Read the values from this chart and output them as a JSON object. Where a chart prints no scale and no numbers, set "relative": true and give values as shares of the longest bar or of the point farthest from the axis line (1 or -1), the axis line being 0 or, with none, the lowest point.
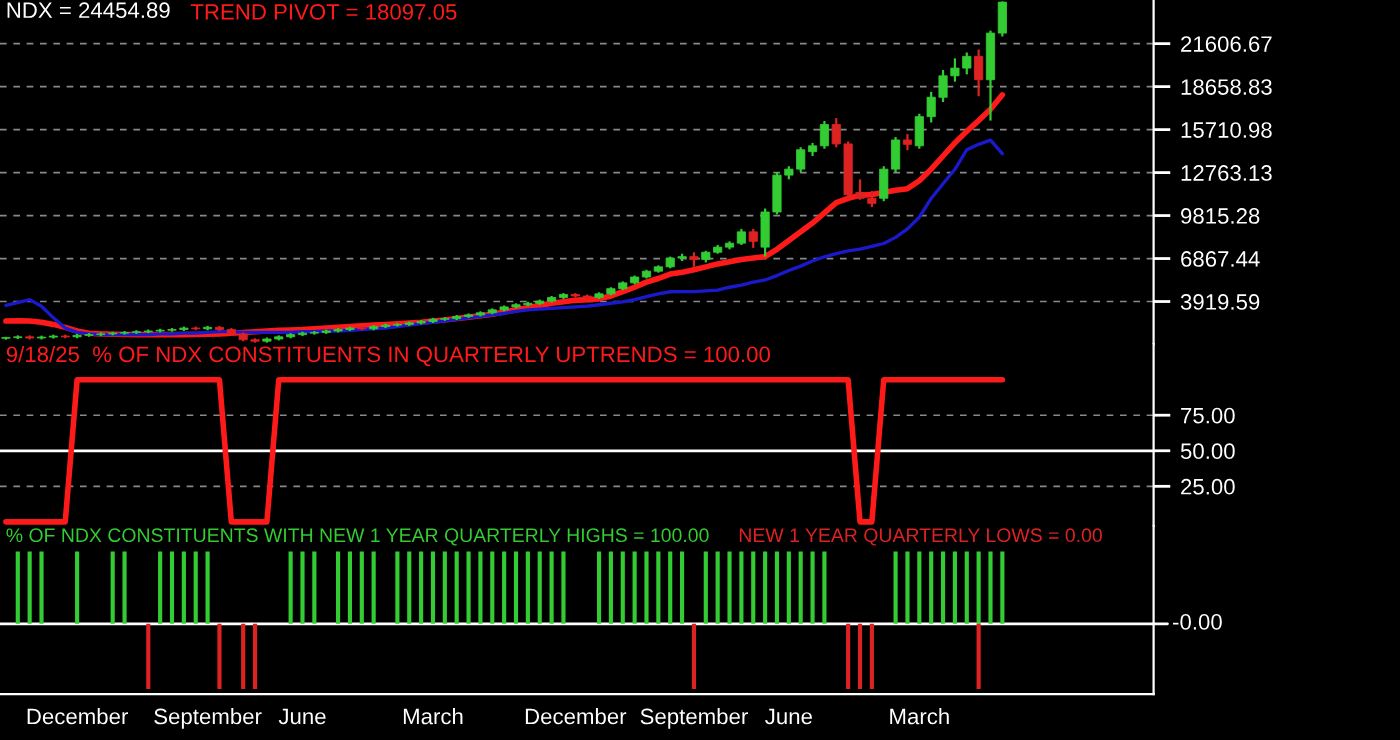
{
  "chart_data": [
    {
      "type": "candlestick",
      "title": "NDX = 24454.89",
      "categories": [
        null,
        null,
        null,
        null,
        null,
        null,
        null,
        null,
        null,
        null,
        null,
        null,
        null,
        null,
        null,
        null,
        null,
        null,
        null,
        null,
        null,
        null,
        null,
        null,
        null,
        null,
        null,
        null,
        null,
        null,
        null,
        null,
        null,
        null,
        null,
        null,
        null,
        null,
        null,
        null,
        null,
        null,
        null,
        null,
        null,
        null,
        null,
        null,
        null,
        null,
        null,
        null,
        null,
        null,
        null,
        null,
        null,
        null,
        null,
        null,
        null,
        null,
        null,
        null,
        null,
        null,
        null,
        null,
        null,
        null,
        null,
        null,
        null,
        null,
        null,
        null,
        null,
        null,
        null,
        null,
        null,
        null,
        null,
        null,
        null
      ],
      "ohlc": [
        [
          1400,
          1500,
          1300,
          1450
        ],
        [
          1450,
          1600,
          1350,
          1500
        ],
        [
          1500,
          1600,
          1320,
          1420
        ],
        [
          1420,
          1580,
          1320,
          1480
        ],
        [
          1480,
          1650,
          1380,
          1550
        ],
        [
          1550,
          1650,
          1400,
          1500
        ],
        [
          1500,
          1700,
          1400,
          1600
        ],
        [
          1600,
          1750,
          1500,
          1650
        ],
        [
          1650,
          1800,
          1550,
          1700
        ],
        [
          1700,
          1850,
          1600,
          1750
        ],
        [
          1750,
          1900,
          1650,
          1800
        ],
        [
          1800,
          1950,
          1700,
          1850
        ],
        [
          1850,
          2000,
          1750,
          1900
        ],
        [
          1900,
          2050,
          1800,
          1950
        ],
        [
          1950,
          2100,
          1850,
          2000
        ],
        [
          2000,
          2200,
          1900,
          2100
        ],
        [
          2100,
          2200,
          1950,
          2050
        ],
        [
          2050,
          2250,
          1950,
          2150
        ],
        [
          2150,
          2250,
          1900,
          2000
        ],
        [
          2000,
          2100,
          1600,
          1700
        ],
        [
          1700,
          1800,
          1200,
          1300
        ],
        [
          1300,
          1400,
          1100,
          1200
        ],
        [
          1200,
          1450,
          1100,
          1350
        ],
        [
          1350,
          1600,
          1250,
          1500
        ],
        [
          1500,
          1750,
          1400,
          1650
        ],
        [
          1650,
          1850,
          1550,
          1750
        ],
        [
          1750,
          1900,
          1650,
          1800
        ],
        [
          1800,
          2000,
          1700,
          1900
        ],
        [
          1900,
          2100,
          1800,
          2000
        ],
        [
          2000,
          2200,
          1900,
          2100
        ],
        [
          2100,
          2200,
          1950,
          2050
        ],
        [
          2050,
          2300,
          1950,
          2200
        ],
        [
          2200,
          2400,
          2100,
          2300
        ],
        [
          2300,
          2450,
          2200,
          2350
        ],
        [
          2350,
          2550,
          2250,
          2450
        ],
        [
          2450,
          2650,
          2350,
          2550
        ],
        [
          2550,
          2800,
          2450,
          2700
        ],
        [
          2700,
          2850,
          2600,
          2750
        ],
        [
          2750,
          3000,
          2650,
          2900
        ],
        [
          2900,
          3100,
          2800,
          3000
        ],
        [
          3000,
          3250,
          2900,
          3150
        ],
        [
          3150,
          3450,
          3050,
          3350
        ],
        [
          3350,
          3650,
          3250,
          3550
        ],
        [
          3550,
          3800,
          3450,
          3700
        ],
        [
          3700,
          3900,
          3600,
          3800
        ],
        [
          3800,
          4050,
          3700,
          3950
        ],
        [
          3950,
          4300,
          3850,
          4200
        ],
        [
          4200,
          4500,
          4100,
          4400
        ],
        [
          4400,
          4500,
          4200,
          4300
        ],
        [
          4300,
          4400,
          4100,
          4200
        ],
        [
          4200,
          4550,
          4100,
          4450
        ],
        [
          4450,
          4900,
          4350,
          4800
        ],
        [
          4800,
          5300,
          4700,
          5200
        ],
        [
          5200,
          5700,
          5100,
          5600
        ],
        [
          5600,
          6100,
          5500,
          6000
        ],
        [
          6000,
          6400,
          5900,
          6300
        ],
        [
          6300,
          7000,
          6200,
          6900
        ],
        [
          6900,
          7200,
          6700,
          7000
        ],
        [
          7000,
          7300,
          6300,
          6800
        ],
        [
          6800,
          7400,
          6600,
          7300
        ],
        [
          7300,
          7800,
          7200,
          7650
        ],
        [
          7650,
          8050,
          7500,
          7920
        ],
        [
          7920,
          8900,
          7800,
          8700
        ],
        [
          8700,
          8900,
          7600,
          8050
        ],
        [
          7650,
          10300,
          7000,
          10060
        ],
        [
          10060,
          12800,
          9900,
          12590
        ],
        [
          12590,
          13200,
          12300,
          13000
        ],
        [
          13000,
          14500,
          12800,
          14330
        ],
        [
          14200,
          14800,
          13900,
          14600
        ],
        [
          14600,
          16300,
          14400,
          16060
        ],
        [
          16060,
          16500,
          14500,
          14730
        ],
        [
          14730,
          14900,
          11000,
          11260
        ],
        [
          11400,
          12300,
          10900,
          11000
        ],
        [
          11000,
          11500,
          10400,
          10650
        ],
        [
          11000,
          13200,
          10800,
          13000
        ],
        [
          13000,
          15200,
          12800,
          15000
        ],
        [
          15000,
          15400,
          14300,
          14700
        ],
        [
          14600,
          16800,
          14400,
          16600
        ],
        [
          16600,
          18300,
          16200,
          17930
        ],
        [
          17930,
          19800,
          17600,
          19400
        ],
        [
          19400,
          20600,
          19000,
          19930
        ],
        [
          19930,
          21000,
          19500,
          20730
        ],
        [
          20730,
          21200,
          18000,
          19130
        ],
        [
          19130,
          22500,
          16330,
          22330
        ],
        [
          22330,
          24500,
          22100,
          24454.89
        ]
      ],
      "colors": [
        "#33cc33",
        "#33cc33",
        "#dd2222",
        "#33cc33",
        "#33cc33",
        "#dd2222",
        "#33cc33",
        "#33cc33",
        "#33cc33",
        "#33cc33",
        "#33cc33",
        "#33cc33",
        "#33cc33",
        "#33cc33",
        "#33cc33",
        "#33cc33",
        "#dd2222",
        "#33cc33",
        "#dd2222",
        "#dd2222",
        "#dd2222",
        "#dd2222",
        "#33cc33",
        "#33cc33",
        "#33cc33",
        "#33cc33",
        "#33cc33",
        "#33cc33",
        "#33cc33",
        "#33cc33",
        "#dd2222",
        "#33cc33",
        "#33cc33",
        "#33cc33",
        "#33cc33",
        "#33cc33",
        "#33cc33",
        "#33cc33",
        "#33cc33",
        "#33cc33",
        "#33cc33",
        "#33cc33",
        "#33cc33",
        "#33cc33",
        "#33cc33",
        "#33cc33",
        "#33cc33",
        "#33cc33",
        "#dd2222",
        "#dd2222",
        "#33cc33",
        "#33cc33",
        "#33cc33",
        "#33cc33",
        "#33cc33",
        "#33cc33",
        "#33cc33",
        "#33cc33",
        "#dd2222",
        "#33cc33",
        "#33cc33",
        "#33cc33",
        "#33cc33",
        "#dd2222",
        "#33cc33",
        "#33cc33",
        "#33cc33",
        "#33cc33",
        "#33cc33",
        "#33cc33",
        "#dd2222",
        "#dd2222",
        "#dd2222",
        "#dd2222",
        "#33cc33",
        "#33cc33",
        "#dd2222",
        "#33cc33",
        "#33cc33",
        "#33cc33",
        "#33cc33",
        "#33cc33",
        "#dd2222",
        "#33cc33",
        "#33cc33"
      ],
      "series": [
        {
          "type": "line",
          "name": "TREND PIVOT = 18097.05",
          "color": "#ff1a1a",
          "values": [
            2580,
            2600,
            2580,
            2500,
            2350,
            2150,
            1900,
            1750,
            1700,
            1680,
            1660,
            1650,
            1650,
            1650,
            1650,
            1650,
            1660,
            1680,
            1700,
            1750,
            1800,
            1850,
            1900,
            1950,
            1970,
            2000,
            2050,
            2100,
            2150,
            2200,
            2250,
            2300,
            2350,
            2400,
            2450,
            2500,
            2580,
            2650,
            2750,
            2850,
            2950,
            3050,
            3200,
            3350,
            3500,
            3650,
            3800,
            3900,
            4000,
            4050,
            4100,
            4300,
            4600,
            4900,
            5250,
            5500,
            5800,
            5920,
            6100,
            6300,
            6500,
            6650,
            6800,
            6900,
            7000,
            7500,
            8100,
            8700,
            9300,
            10000,
            10700,
            11000,
            11200,
            11260,
            11400,
            11550,
            11660,
            12200,
            13000,
            13900,
            14800,
            15600,
            16330,
            17100,
            18097.05
          ]
        },
        {
          "type": "line",
          "color": "#1a1acc",
          "values": [
            3650,
            3850,
            4050,
            3600,
            2800,
            2100,
            1800,
            1700,
            1650,
            1650,
            1650,
            1650,
            1650,
            1700,
            1700,
            1750,
            1750,
            1800,
            1850,
            1850,
            1800,
            1800,
            1800,
            1800,
            1800,
            1850,
            1850,
            1900,
            1900,
            1950,
            2000,
            2050,
            2100,
            2200,
            2300,
            2400,
            2500,
            2600,
            2700,
            2800,
            2900,
            3000,
            3100,
            3250,
            3350,
            3400,
            3450,
            3500,
            3550,
            3600,
            3700,
            3800,
            3900,
            4050,
            4250,
            4450,
            4590,
            4600,
            4600,
            4650,
            4700,
            4900,
            5050,
            5250,
            5400,
            5700,
            6050,
            6350,
            6700,
            6990,
            7200,
            7400,
            7520,
            7700,
            7900,
            8320,
            8900,
            9700,
            10990,
            12000,
            12990,
            14330,
            14700,
            14990,
            14060
          ]
        }
      ],
      "ylim": [
        1000,
        24600
      ],
      "yticks": [
        3919.59,
        6867.44,
        9815.28,
        12763.13,
        15710.98,
        18658.83,
        21606.67
      ],
      "grid": "y",
      "tick_labels": "y"
    },
    {
      "type": "line",
      "categories": [
        null,
        null,
        null,
        null,
        null,
        null,
        null,
        null,
        null,
        null,
        null,
        null,
        null,
        null,
        null,
        null,
        null,
        null,
        null,
        null,
        null,
        null,
        null,
        null,
        null,
        null,
        null,
        null,
        null,
        null,
        null,
        null,
        null,
        null,
        null,
        null,
        null,
        null,
        null,
        null,
        null,
        null,
        null,
        null,
        null,
        null,
        null,
        null,
        null,
        null,
        null,
        null,
        null,
        null,
        null,
        null,
        null,
        null,
        null,
        null,
        null,
        null,
        null,
        null,
        null,
        null,
        null,
        null,
        null,
        null,
        null,
        null,
        null,
        null,
        null,
        null,
        null,
        null,
        null,
        null,
        null,
        null,
        null,
        null,
        null
      ],
      "series": [
        {
          "name": "9/18/25  % OF NDX CONSTITUENTS IN QUARTERLY UPTRENDS = 100.00",
          "color": "#ff1a1a",
          "values": [
            0,
            0,
            0,
            0,
            0,
            0,
            100,
            100,
            100,
            100,
            100,
            100,
            100,
            100,
            100,
            100,
            100,
            100,
            100,
            0,
            0,
            0,
            0,
            100,
            100,
            100,
            100,
            100,
            100,
            100,
            100,
            100,
            100,
            100,
            100,
            100,
            100,
            100,
            100,
            100,
            100,
            100,
            100,
            100,
            100,
            100,
            100,
            100,
            100,
            100,
            100,
            100,
            100,
            100,
            100,
            100,
            100,
            100,
            100,
            100,
            100,
            100,
            100,
            100,
            100,
            100,
            100,
            100,
            100,
            100,
            100,
            100,
            0,
            0,
            100,
            100,
            100,
            100,
            100,
            100,
            100,
            100,
            100,
            100,
            100
          ]
        }
      ],
      "ylim": [
        -3,
        125
      ],
      "yticks": [
        {
          "value": 25,
          "label": "25.00"
        },
        {
          "value": 50,
          "label": "50.00"
        },
        {
          "value": 75,
          "label": "75.00"
        }
      ],
      "grid": "y",
      "ref_lines": [
        {
          "axis": "y",
          "value": 50,
          "color": "#ffffff"
        }
      ],
      "tick_labels": "y"
    },
    {
      "type": "bar",
      "relative": true,
      "categories": [
        null,
        null,
        null,
        null,
        null,
        null,
        "December",
        null,
        null,
        null,
        null,
        null,
        null,
        null,
        null,
        null,
        null,
        "September",
        null,
        null,
        null,
        null,
        null,
        null,
        null,
        "June",
        null,
        null,
        null,
        null,
        null,
        null,
        null,
        null,
        null,
        null,
        "March",
        null,
        null,
        null,
        null,
        null,
        null,
        null,
        null,
        null,
        null,
        null,
        "December",
        null,
        null,
        null,
        null,
        null,
        null,
        null,
        null,
        null,
        "September",
        null,
        null,
        null,
        null,
        null,
        null,
        null,
        "June",
        null,
        null,
        null,
        null,
        null,
        null,
        null,
        null,
        null,
        null,
        "March",
        null,
        null,
        null,
        null,
        null,
        null,
        null
      ],
      "series": [
        {
          "name": "% OF NDX CONSTITUENTS WITH NEW 1 YEAR QUARTERLY HIGHS = 100.00",
          "color": "#33cc33",
          "values": [
            null,
            1,
            1,
            1,
            null,
            null,
            1,
            null,
            null,
            1,
            1,
            null,
            null,
            1,
            1,
            1,
            1,
            1,
            null,
            null,
            null,
            null,
            null,
            null,
            1,
            1,
            1,
            null,
            1,
            1,
            1,
            1,
            null,
            1,
            1,
            1,
            1,
            1,
            1,
            1,
            1,
            1,
            1,
            1,
            1,
            1,
            1,
            1,
            null,
            null,
            1,
            1,
            1,
            1,
            1,
            1,
            1,
            1,
            null,
            1,
            1,
            1,
            1,
            1,
            1,
            1,
            1,
            1,
            1,
            1,
            null,
            null,
            null,
            null,
            null,
            1,
            1,
            1,
            1,
            1,
            1,
            1,
            1,
            1,
            1
          ]
        },
        {
          "name": "NEW 1 YEAR QUARTERLY LOWS = 0.00",
          "color": "#dd2222",
          "values": [
            null,
            null,
            null,
            null,
            null,
            null,
            null,
            null,
            null,
            null,
            null,
            null,
            -0.9,
            null,
            null,
            null,
            null,
            null,
            -0.9,
            null,
            -0.9,
            -0.9,
            null,
            null,
            null,
            null,
            null,
            null,
            null,
            null,
            null,
            null,
            null,
            null,
            null,
            null,
            null,
            null,
            null,
            null,
            null,
            null,
            null,
            null,
            null,
            null,
            null,
            null,
            null,
            null,
            null,
            null,
            null,
            null,
            null,
            null,
            null,
            null,
            -0.9,
            null,
            null,
            null,
            null,
            null,
            null,
            null,
            null,
            null,
            null,
            null,
            null,
            -0.9,
            -0.9,
            -0.9,
            null,
            null,
            null,
            null,
            null,
            null,
            null,
            null,
            -0.9,
            null,
            null
          ]
        }
      ],
      "ref_lines": [
        {
          "axis": "y",
          "value": 0,
          "label": "-0.00",
          "color": "#ffffff"
        }
      ],
      "tick_labels": "x"
    }
  ]
}
